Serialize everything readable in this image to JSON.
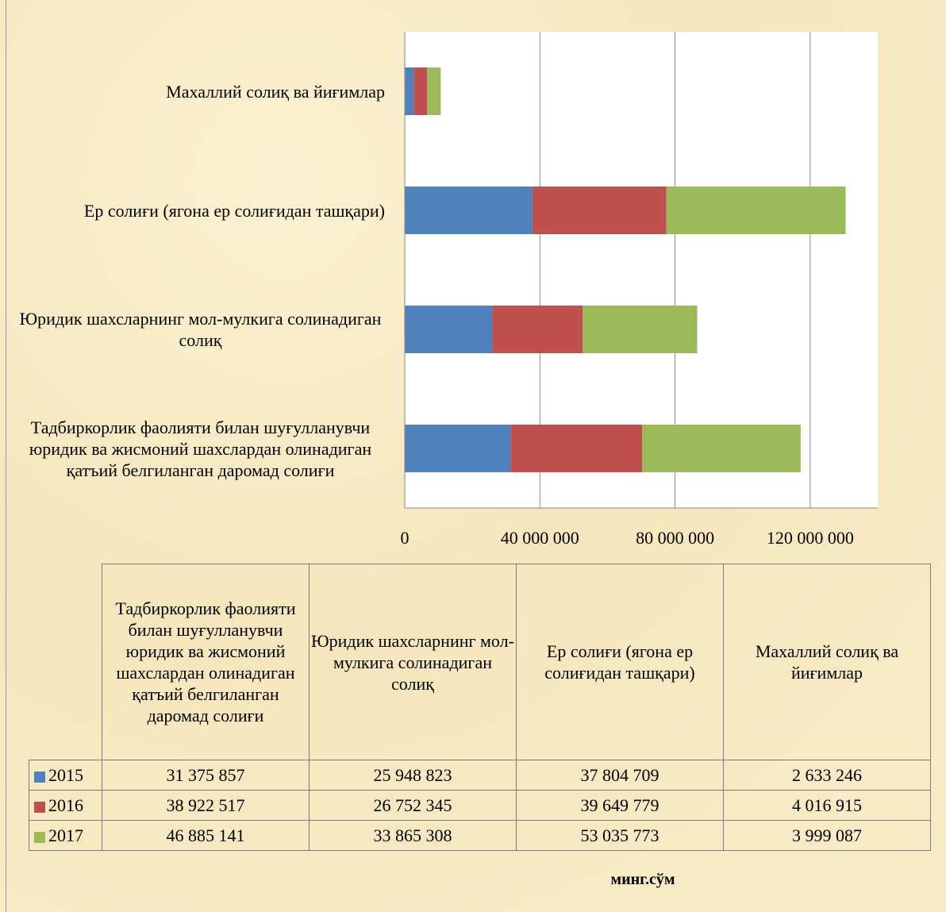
{
  "chart_data": {
    "type": "bar",
    "orientation": "horizontal",
    "stacked": true,
    "categories": [
      "Тадбиркорлик фаолияти билан шуғулланувчи юридик ва жисмоний шахслардан олинадиган қатъий белгиланган даромад солиғи",
      "Юридик шахсларнинг мол-мулкига солинадиган солиқ",
      "Ер солиғи (ягона ер солиғидан ташқари)",
      "Махаллий солиқ ва йиғимлар"
    ],
    "series": [
      {
        "name": "2015",
        "color": "#4f81bd",
        "values": [
          31375857,
          25948823,
          37804709,
          2633246
        ],
        "value_labels": [
          "31 375 857",
          "25 948 823",
          "37 804 709",
          "2 633 246"
        ]
      },
      {
        "name": "2016",
        "color": "#c0504d",
        "values": [
          38922517,
          26752345,
          39649779,
          4016915
        ],
        "value_labels": [
          "38 922 517",
          "26 752 345",
          "39 649 779",
          "4 016 915"
        ]
      },
      {
        "name": "2017",
        "color": "#9bbb59",
        "values": [
          46885141,
          33865308,
          53035773,
          3999087
        ],
        "value_labels": [
          "46 885 141",
          "33 865 308",
          "53 035 773",
          "3 999 087"
        ]
      }
    ],
    "xlim": [
      0,
      140000000
    ],
    "xticks": [
      0,
      {
        "value": 40000000,
        "label": "40 000 000"
      },
      {
        "value": 80000000,
        "label": "80 000 000"
      },
      {
        "value": 120000000,
        "label": "120 000 000"
      }
    ],
    "grid": true,
    "data_table": true,
    "unit_label": "минг.сўм"
  }
}
